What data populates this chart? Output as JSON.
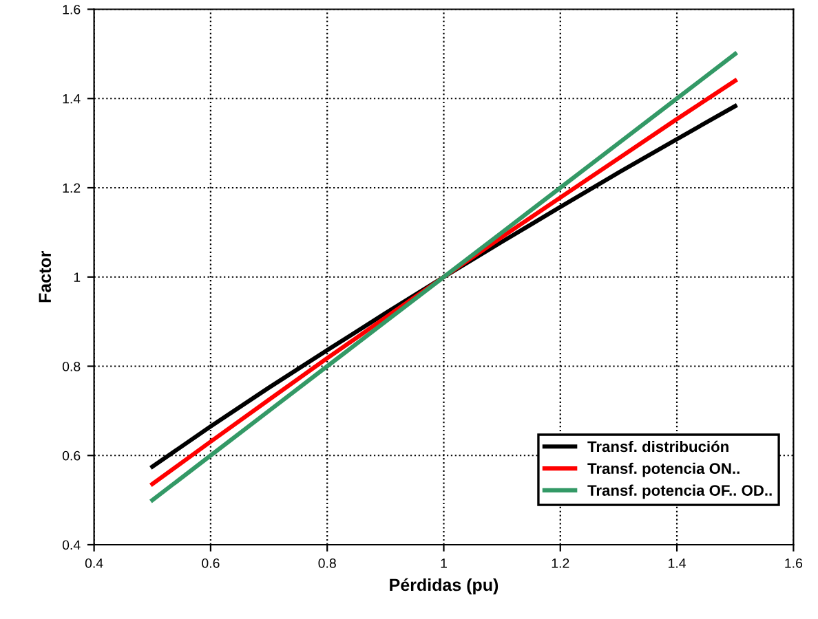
{
  "chart_data": {
    "type": "line",
    "xlabel": "Pérdidas (pu)",
    "ylabel": "Factor",
    "x": [
      0.5,
      0.6,
      0.7,
      0.8,
      0.9,
      1.0,
      1.1,
      1.2,
      1.3,
      1.4,
      1.5
    ],
    "series": [
      {
        "name": "Transf. distribución",
        "color": "#000000",
        "values": [
          0.575,
          0.665,
          0.752,
          0.836,
          0.919,
          1.0,
          1.079,
          1.157,
          1.234,
          1.309,
          1.383
        ]
      },
      {
        "name": "Transf. potencia ON..",
        "color": "#ff0000",
        "values": [
          0.536,
          0.631,
          0.725,
          0.818,
          0.909,
          1.0,
          1.09,
          1.178,
          1.266,
          1.354,
          1.44
        ]
      },
      {
        "name": "Transf. potencia OF.. OD..",
        "color": "#339966",
        "values": [
          0.5,
          0.6,
          0.7,
          0.8,
          0.9,
          1.0,
          1.1,
          1.2,
          1.3,
          1.4,
          1.5
        ]
      }
    ],
    "xlim": [
      0.4,
      1.6
    ],
    "xticks": [
      0.4,
      0.6,
      0.8,
      1,
      1.2,
      1.4,
      1.6
    ],
    "ylim": [
      0.4,
      1.6
    ],
    "yticks": [
      0.4,
      0.6,
      0.8,
      1,
      1.2,
      1.4,
      1.6
    ],
    "grid": true,
    "legend": "bottom right",
    "marker": "none",
    "line_style": "solid"
  }
}
